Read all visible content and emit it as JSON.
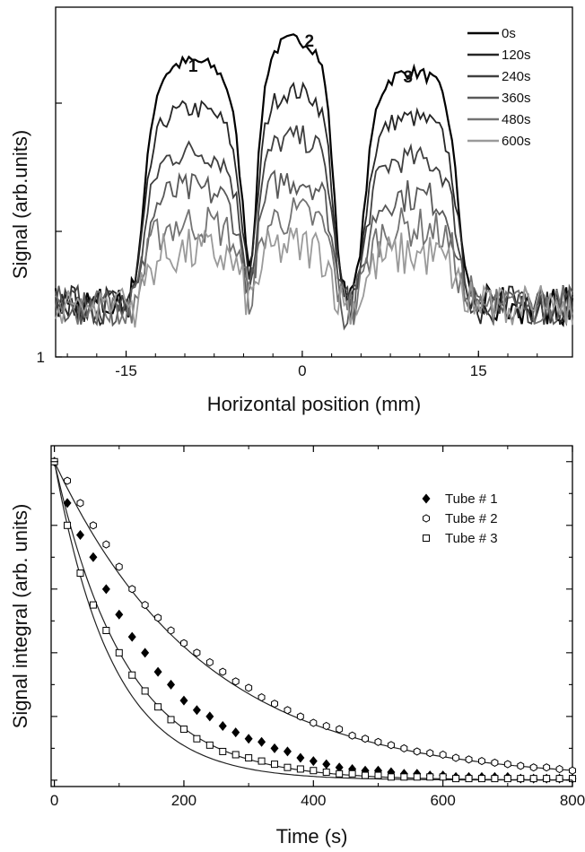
{
  "chart_data": [
    {
      "type": "line",
      "title": "",
      "xlabel": "Horizontal position (mm)",
      "ylabel": "Signal (arb.units)",
      "xlim": [
        -21,
        23
      ],
      "yscale": "log",
      "xticks": [
        -15,
        0,
        15
      ],
      "xtick_labels": [
        "-15",
        "0",
        "15"
      ],
      "yticks": [
        1
      ],
      "ytick_labels": [
        "1"
      ],
      "legend_position": "top-right",
      "annotations": [
        "1",
        "2",
        "3"
      ],
      "series": [
        {
          "name": "0s",
          "color": "#000000",
          "level": 1.0
        },
        {
          "name": "120s",
          "color": "#262626",
          "level": 0.8
        },
        {
          "name": "240s",
          "color": "#404040",
          "level": 0.62
        },
        {
          "name": "360s",
          "color": "#595959",
          "level": 0.46
        },
        {
          "name": "480s",
          "color": "#737373",
          "level": 0.32
        },
        {
          "name": "600s",
          "color": "#9a9a9a",
          "level": 0.2
        }
      ]
    },
    {
      "type": "scatter",
      "title": "",
      "xlabel": "Time (s)",
      "ylabel": "Signal integral (arb. units)",
      "xlim": [
        -5,
        800
      ],
      "ylim": [
        -0.02,
        1.05
      ],
      "xticks": [
        0,
        200,
        400,
        600,
        800
      ],
      "xtick_labels": [
        "0",
        "200",
        "400",
        "600",
        "800"
      ],
      "legend_position": "top-right",
      "fit_lines": true,
      "series": [
        {
          "name": "Tube # 1",
          "marker": "filled-diamond",
          "tau": 110,
          "x": [
            0,
            20,
            40,
            60,
            80,
            100,
            120,
            140,
            160,
            180,
            200,
            220,
            240,
            260,
            280,
            300,
            320,
            340,
            360,
            380,
            400,
            420,
            440,
            460,
            480,
            500,
            520,
            540,
            560,
            580,
            600,
            620,
            640,
            660,
            680,
            700,
            720,
            740,
            760,
            780,
            800
          ],
          "y": [
            1.0,
            0.87,
            0.77,
            0.7,
            0.6,
            0.52,
            0.45,
            0.4,
            0.34,
            0.3,
            0.25,
            0.22,
            0.2,
            0.17,
            0.15,
            0.13,
            0.12,
            0.1,
            0.09,
            0.07,
            0.06,
            0.05,
            0.04,
            0.035,
            0.03,
            0.03,
            0.025,
            0.02,
            0.02,
            0.015,
            0.015,
            0.01,
            0.01,
            0.01,
            0.01,
            0.01,
            0.005,
            0.005,
            0.005,
            0.005,
            0.005
          ]
        },
        {
          "name": "Tube # 2",
          "marker": "open-hexagon",
          "tau": 230,
          "x": [
            0,
            20,
            40,
            60,
            80,
            100,
            120,
            140,
            160,
            180,
            200,
            220,
            240,
            260,
            280,
            300,
            320,
            340,
            360,
            380,
            400,
            420,
            440,
            460,
            480,
            500,
            520,
            540,
            560,
            580,
            600,
            620,
            640,
            660,
            680,
            700,
            720,
            740,
            760,
            780,
            800
          ],
          "y": [
            1.0,
            0.94,
            0.87,
            0.8,
            0.74,
            0.67,
            0.6,
            0.55,
            0.51,
            0.47,
            0.43,
            0.4,
            0.37,
            0.34,
            0.31,
            0.29,
            0.26,
            0.24,
            0.22,
            0.2,
            0.18,
            0.17,
            0.16,
            0.14,
            0.13,
            0.12,
            0.11,
            0.1,
            0.09,
            0.085,
            0.08,
            0.07,
            0.065,
            0.06,
            0.055,
            0.05,
            0.045,
            0.04,
            0.04,
            0.035,
            0.03
          ]
        },
        {
          "name": "Tube # 3",
          "marker": "open-square",
          "tau": 90,
          "x": [
            0,
            20,
            40,
            60,
            80,
            100,
            120,
            140,
            160,
            180,
            200,
            220,
            240,
            260,
            280,
            300,
            320,
            340,
            360,
            380,
            400,
            420,
            440,
            460,
            480,
            500,
            520,
            540,
            560,
            580,
            600,
            620,
            640,
            660,
            680,
            700,
            720,
            740,
            760,
            780,
            800
          ],
          "y": [
            1.0,
            0.8,
            0.65,
            0.55,
            0.47,
            0.4,
            0.33,
            0.28,
            0.23,
            0.19,
            0.16,
            0.13,
            0.11,
            0.09,
            0.08,
            0.07,
            0.06,
            0.05,
            0.04,
            0.035,
            0.03,
            0.025,
            0.02,
            0.02,
            0.015,
            0.015,
            0.01,
            0.01,
            0.01,
            0.01,
            0.01,
            0.005,
            0.005,
            0.005,
            0.005,
            0.005,
            0.005,
            0.005,
            0.005,
            0.005,
            0.005
          ]
        }
      ]
    }
  ]
}
